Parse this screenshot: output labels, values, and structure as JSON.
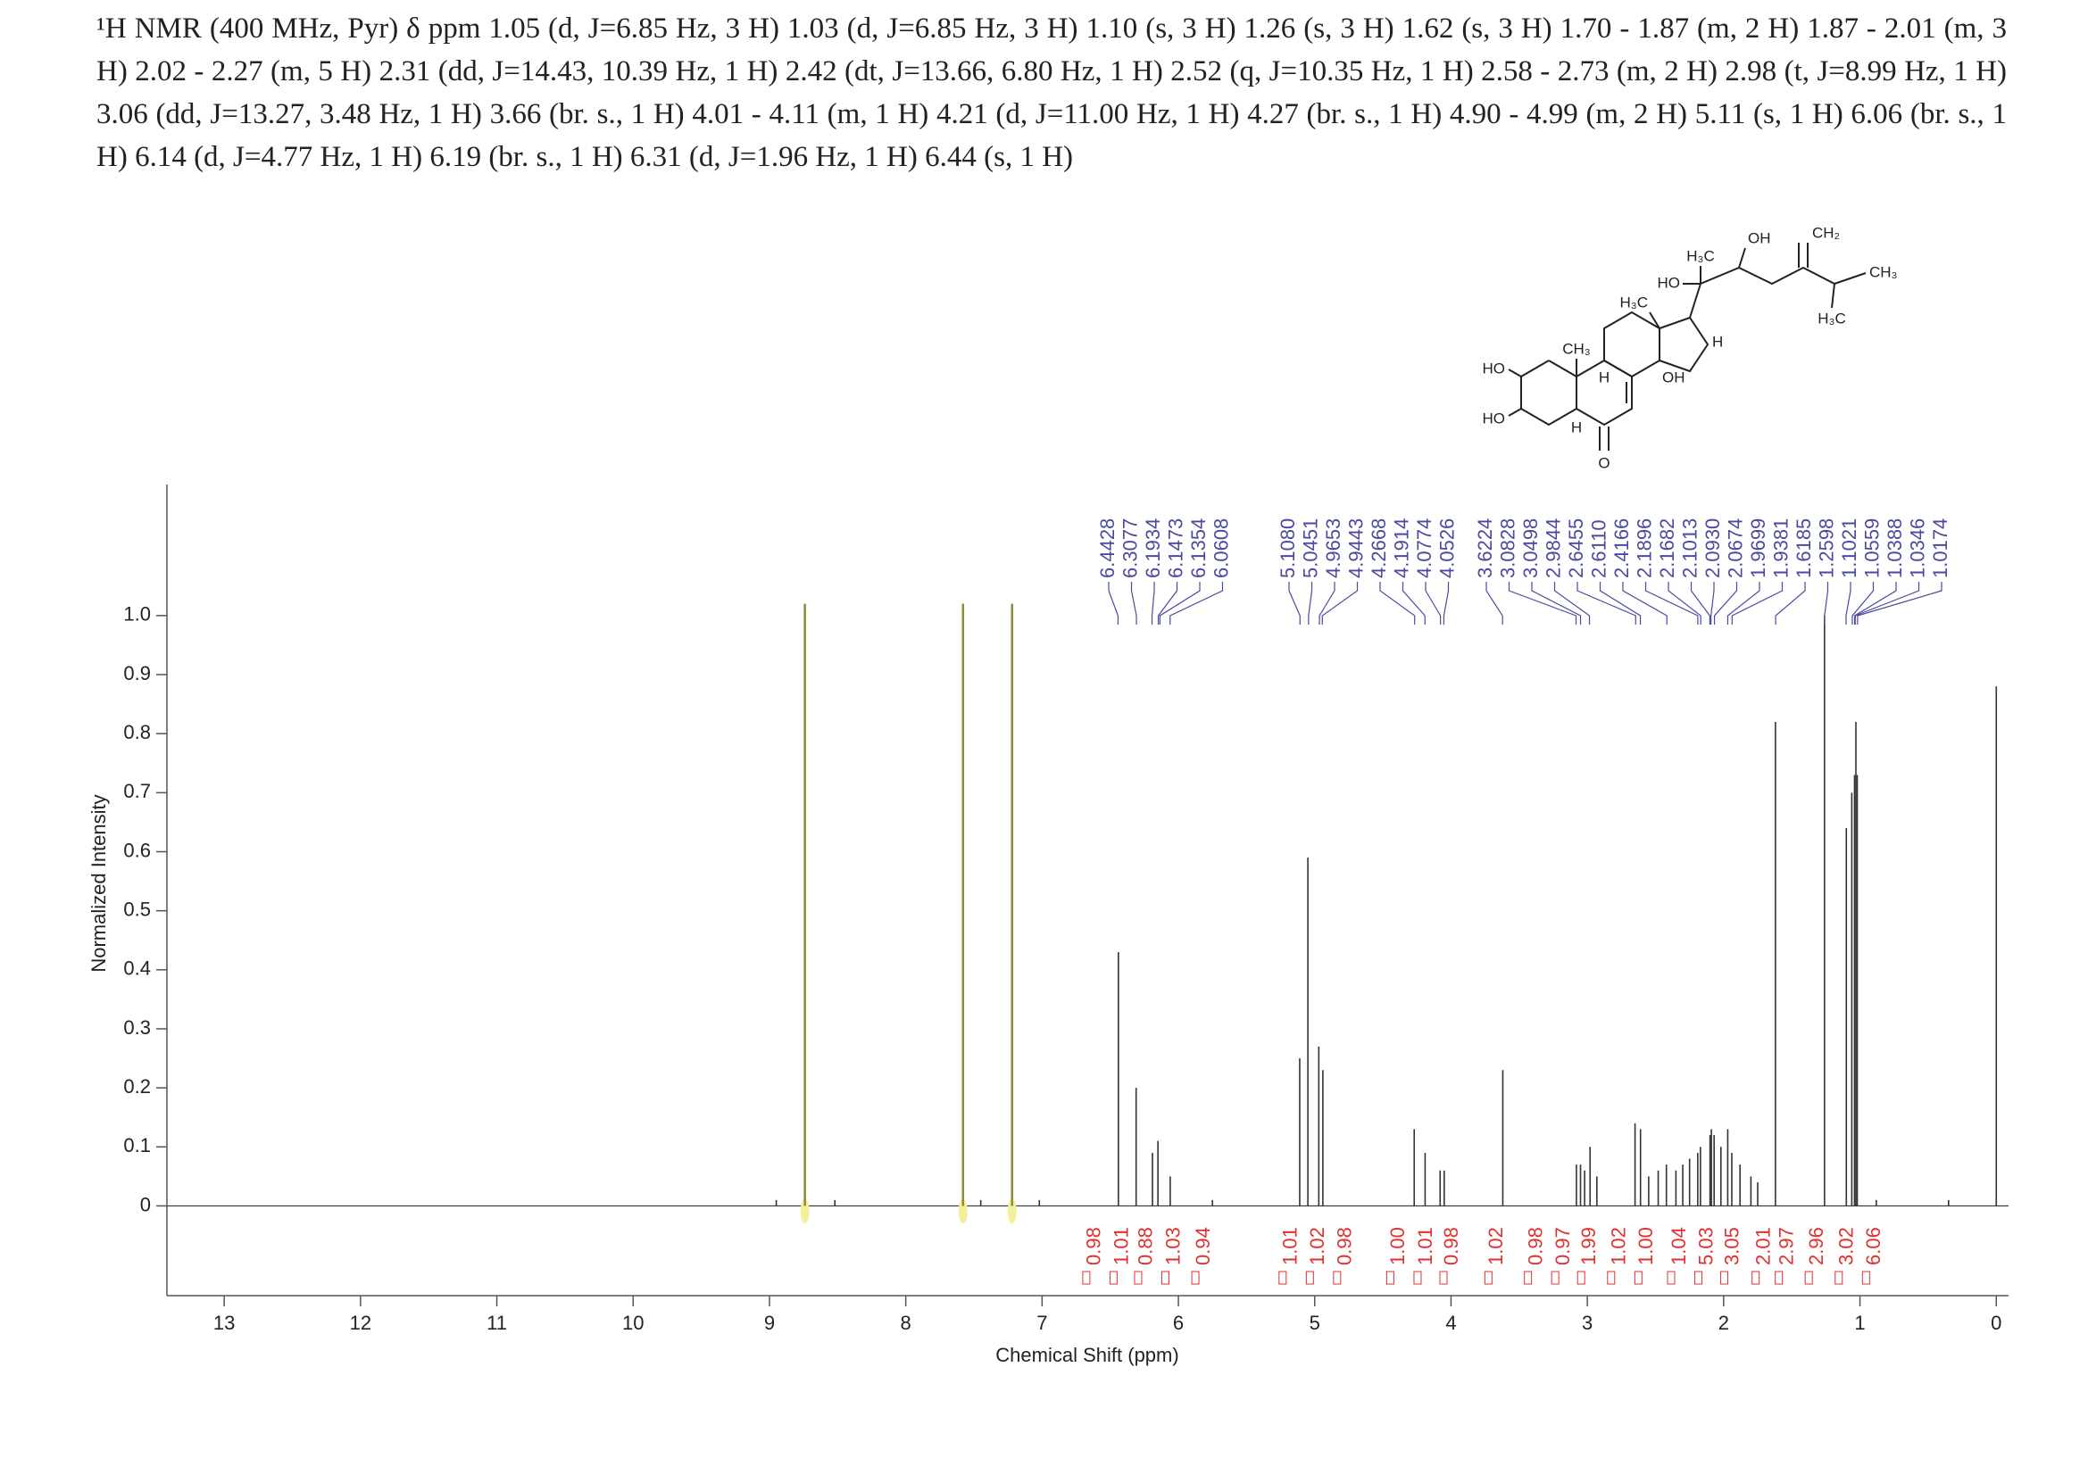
{
  "description": "¹H NMR (400 MHz, Pyr) δ ppm 1.05 (d, J=6.85 Hz, 3 H) 1.03 (d, J=6.85 Hz, 3 H) 1.10 (s, 3 H) 1.26 (s, 3 H) 1.62 (s, 3 H) 1.70 - 1.87 (m, 2 H) 1.87 - 2.01 (m, 3 H) 2.02 - 2.27 (m, 5 H) 2.31 (dd, J=14.43, 10.39 Hz, 1 H) 2.42 (dt, J=13.66, 6.80 Hz, 1 H) 2.52 (q, J=10.35 Hz, 1 H) 2.58 - 2.73 (m, 2 H) 2.98 (t, J=8.99 Hz, 1 H) 3.06 (dd, J=13.27, 3.48 Hz, 1 H) 3.66 (br. s., 1 H) 4.01 - 4.11 (m, 1 H) 4.21 (d, J=11.00 Hz, 1 H) 4.27 (br. s., 1 H) 4.90 - 4.99 (m, 2 H) 5.11 (s, 1 H) 6.06 (br. s., 1 H) 6.14 (d, J=4.77 Hz, 1 H) 6.19 (br. s., 1 H) 6.31 (d, J=1.96 Hz, 1 H) 6.44 (s, 1 H)",
  "structure": {
    "labels": [
      "HO",
      "HO",
      "O",
      "H",
      "CH₃",
      "H",
      "OH",
      "H₃C",
      "H",
      "H₃C",
      "HO",
      "OH",
      "CH₂",
      "CH₃",
      "H₃C"
    ]
  },
  "chart_data": {
    "type": "spectrum",
    "x_label": "Chemical Shift (ppm)",
    "y_label": "Normalized Intensity",
    "xlim": [
      13.42,
      -0.09
    ],
    "ylim": [
      -0.152,
      1.222
    ],
    "xticks": [
      0,
      1,
      2,
      3,
      4,
      5,
      6,
      7,
      8,
      9,
      10,
      11,
      12,
      13
    ],
    "yticks": [
      0,
      0.1,
      0.2,
      0.3,
      0.4,
      0.5,
      0.6,
      0.7,
      0.8,
      0.9,
      {
        "value": 1,
        "label": "1.0"
      }
    ],
    "color": "#333333",
    "x": [
      8.95,
      8.52,
      7.45,
      7.02,
      6.44,
      6.31,
      6.19,
      6.15,
      6.06,
      5.75,
      5.11,
      5.05,
      4.97,
      4.94,
      4.27,
      4.19,
      4.08,
      4.05,
      3.62,
      3.08,
      3.05,
      3.02,
      2.98,
      2.93,
      2.65,
      2.61,
      2.55,
      2.48,
      2.42,
      2.35,
      2.3,
      2.25,
      2.19,
      2.17,
      2.1,
      2.09,
      2.07,
      2.02,
      1.97,
      1.94,
      1.88,
      1.8,
      1.75,
      1.62,
      1.26,
      1.1,
      1.06,
      1.04,
      1.03,
      1.02,
      0.88,
      0.35,
      0
    ],
    "values": [
      0.01,
      0.01,
      0.01,
      0.01,
      0.43,
      0.2,
      0.09,
      0.11,
      0.05,
      0.01,
      0.25,
      0.59,
      0.27,
      0.23,
      0.13,
      0.09,
      0.06,
      0.06,
      0.23,
      0.07,
      0.07,
      0.06,
      0.1,
      0.05,
      0.14,
      0.13,
      0.05,
      0.06,
      0.07,
      0.06,
      0.07,
      0.08,
      0.09,
      0.1,
      0.12,
      0.13,
      0.12,
      0.1,
      0.13,
      0.09,
      0.07,
      0.05,
      0.04,
      0.82,
      1.0,
      0.64,
      0.7,
      0.73,
      0.82,
      0.73,
      0.01,
      0.01,
      0.88
    ],
    "solvent": {
      "color": "#8c8c3c",
      "x": [
        8.74,
        7.58,
        7.22
      ],
      "values": [
        1.02,
        1.02,
        1.02
      ]
    },
    "peak_label_color": "#4a4aa0",
    "peak_labels": [
      6.4428,
      6.3077,
      6.1934,
      6.1473,
      6.1354,
      6.0608,
      {
        "value": 5.108,
        "label": "5.1080"
      },
      5.0451,
      4.9653,
      4.9443,
      4.2668,
      4.1914,
      4.0774,
      4.0526,
      3.6224,
      3.0828,
      3.0498,
      2.9844,
      2.6455,
      {
        "value": 2.611,
        "label": "2.6110"
      },
      2.4166,
      2.1896,
      2.1682,
      2.1013,
      {
        "value": 2.093,
        "label": "2.0930"
      },
      2.0674,
      1.9699,
      1.9381,
      1.6185,
      1.2598,
      1.1021,
      1.0559,
      1.0388,
      1.0346,
      1.0174
    ],
    "integral_color": "#e03030",
    "integrals": {
      "x": [
        6.61,
        6.41,
        6.23,
        6.03,
        5.81,
        5.17,
        4.97,
        4.77,
        4.38,
        4.18,
        3.99,
        3.66,
        3.37,
        3.17,
        2.98,
        2.76,
        2.56,
        2.32,
        2.12,
        1.93,
        1.7,
        1.53,
        1.31,
        1.09,
        0.89
      ],
      "values": [
        0.98,
        1.01,
        0.88,
        1.03,
        0.94,
        1.01,
        1.02,
        0.98,
        {
          "value": 1,
          "label": "1.00"
        },
        1.01,
        0.98,
        1.02,
        0.98,
        0.97,
        1.99,
        1.02,
        {
          "value": 1,
          "label": "1.00"
        },
        1.04,
        5.03,
        3.05,
        2.01,
        2.97,
        2.96,
        3.02,
        6.06
      ]
    }
  }
}
